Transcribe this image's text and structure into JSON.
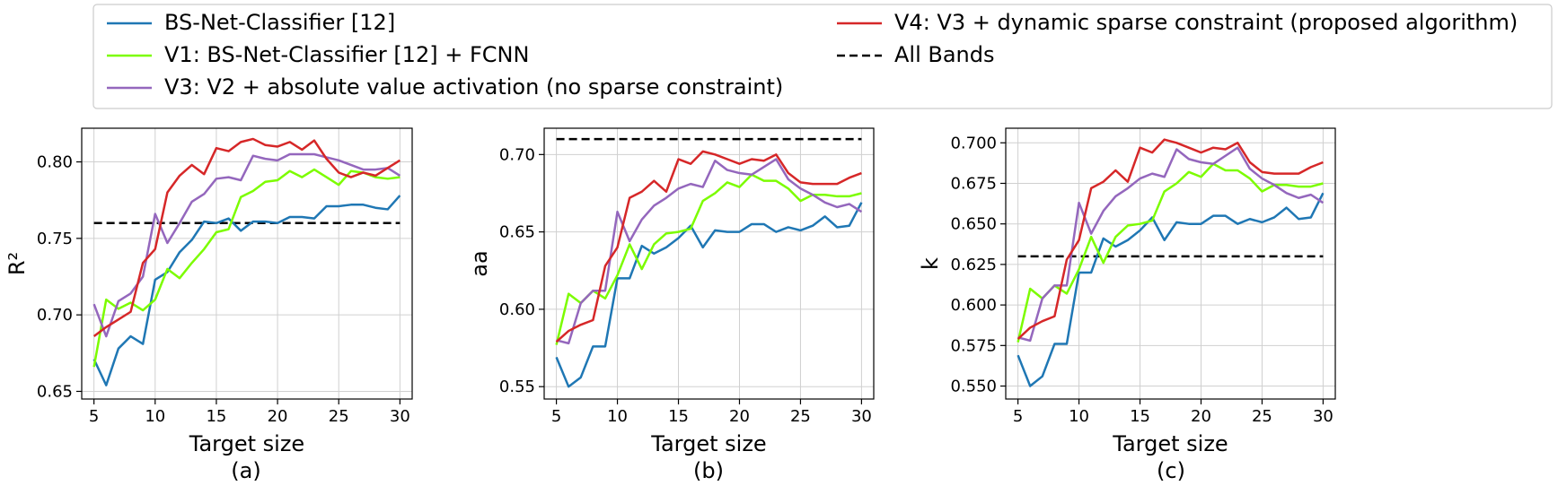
{
  "figure": {
    "sublabels": [
      "(a)",
      "(b)",
      "(c)"
    ]
  },
  "legend": {
    "entries": [
      {
        "label": "BS-Net-Classifier [12]",
        "color": "#1f77b4",
        "dashed": false
      },
      {
        "label": "V1: BS-Net-Classifier [12] + FCNN",
        "color": "#7cfc00",
        "dashed": false
      },
      {
        "label": "V3: V2 + absolute value activation (no sparse constraint)",
        "color": "#9467bd",
        "dashed": false
      },
      {
        "label": "V4: V3 + dynamic sparse constraint (proposed algorithm)",
        "color": "#d62728",
        "dashed": false
      },
      {
        "label": "All Bands",
        "color": "#000000",
        "dashed": true
      }
    ]
  },
  "chart_data": [
    {
      "type": "line",
      "title": "",
      "xlabel": "Target size",
      "ylabel": "R²",
      "xlim": [
        4,
        31
      ],
      "ylim": [
        0.645,
        0.822
      ],
      "xticks": [
        5,
        10,
        15,
        20,
        25,
        30
      ],
      "yticks": [
        0.65,
        0.7,
        0.75,
        0.8
      ],
      "ytick_labels": [
        "0.65",
        "0.70",
        "0.75",
        "0.80"
      ],
      "grid": true,
      "x": [
        5,
        6,
        7,
        8,
        9,
        10,
        11,
        12,
        13,
        14,
        15,
        16,
        17,
        18,
        19,
        20,
        21,
        22,
        23,
        24,
        25,
        26,
        27,
        28,
        29,
        30
      ],
      "series": [
        {
          "name": "BS-Net-Classifier [12]",
          "color": "#1f77b4",
          "values": [
            0.671,
            0.654,
            0.678,
            0.686,
            0.681,
            0.723,
            0.728,
            0.741,
            0.749,
            0.761,
            0.76,
            0.763,
            0.755,
            0.761,
            0.761,
            0.76,
            0.764,
            0.764,
            0.763,
            0.771,
            0.771,
            0.772,
            0.772,
            0.77,
            0.769,
            0.778
          ]
        },
        {
          "name": "V1: BS-Net-Classifier [12] + FCNN",
          "color": "#7cfc00",
          "values": [
            0.666,
            0.71,
            0.704,
            0.708,
            0.703,
            0.71,
            0.73,
            0.724,
            0.734,
            0.743,
            0.754,
            0.756,
            0.777,
            0.781,
            0.787,
            0.788,
            0.794,
            0.79,
            0.795,
            0.79,
            0.785,
            0.794,
            0.793,
            0.79,
            0.789,
            0.79
          ]
        },
        {
          "name": "V3: V2 + absolute value activation (no sparse constraint)",
          "color": "#9467bd",
          "values": [
            0.707,
            0.686,
            0.709,
            0.714,
            0.725,
            0.766,
            0.747,
            0.76,
            0.774,
            0.779,
            0.789,
            0.79,
            0.788,
            0.804,
            0.802,
            0.801,
            0.805,
            0.805,
            0.805,
            0.803,
            0.801,
            0.798,
            0.795,
            0.795,
            0.796,
            0.791
          ]
        },
        {
          "name": "V4: V3 + dynamic sparse constraint (proposed algorithm)",
          "color": "#d62728",
          "values": [
            0.686,
            0.692,
            0.697,
            0.702,
            0.734,
            0.743,
            0.78,
            0.791,
            0.798,
            0.792,
            0.809,
            0.807,
            0.813,
            0.815,
            0.811,
            0.81,
            0.813,
            0.808,
            0.814,
            0.802,
            0.793,
            0.79,
            0.793,
            0.791,
            0.796,
            0.801
          ]
        }
      ],
      "reference": {
        "name": "All Bands",
        "value": 0.76
      }
    },
    {
      "type": "line",
      "title": "",
      "xlabel": "Target size",
      "ylabel": "aa",
      "xlim": [
        4,
        31
      ],
      "ylim": [
        0.542,
        0.717
      ],
      "xticks": [
        5,
        10,
        15,
        20,
        25,
        30
      ],
      "yticks": [
        0.55,
        0.6,
        0.65,
        0.7
      ],
      "ytick_labels": [
        "0.55",
        "0.60",
        "0.65",
        "0.70"
      ],
      "grid": true,
      "x": [
        5,
        6,
        7,
        8,
        9,
        10,
        11,
        12,
        13,
        14,
        15,
        16,
        17,
        18,
        19,
        20,
        21,
        22,
        23,
        24,
        25,
        26,
        27,
        28,
        29,
        30
      ],
      "series": [
        {
          "name": "BS-Net-Classifier [12]",
          "color": "#1f77b4",
          "values": [
            0.569,
            0.55,
            0.556,
            0.576,
            0.576,
            0.62,
            0.62,
            0.641,
            0.636,
            0.64,
            0.646,
            0.654,
            0.64,
            0.651,
            0.65,
            0.65,
            0.655,
            0.655,
            0.65,
            0.653,
            0.651,
            0.654,
            0.66,
            0.653,
            0.654,
            0.669
          ]
        },
        {
          "name": "V1: BS-Net-Classifier [12] + FCNN",
          "color": "#7cfc00",
          "values": [
            0.577,
            0.61,
            0.604,
            0.612,
            0.607,
            0.622,
            0.642,
            0.626,
            0.642,
            0.649,
            0.65,
            0.652,
            0.67,
            0.675,
            0.682,
            0.679,
            0.687,
            0.683,
            0.683,
            0.678,
            0.67,
            0.674,
            0.674,
            0.673,
            0.673,
            0.675
          ]
        },
        {
          "name": "V3: V2 + absolute value activation (no sparse constraint)",
          "color": "#9467bd",
          "values": [
            0.58,
            0.578,
            0.604,
            0.612,
            0.612,
            0.663,
            0.644,
            0.658,
            0.667,
            0.672,
            0.678,
            0.681,
            0.679,
            0.696,
            0.69,
            0.688,
            0.687,
            0.692,
            0.697,
            0.684,
            0.678,
            0.674,
            0.669,
            0.666,
            0.668,
            0.663
          ]
        },
        {
          "name": "V4: V3 + dynamic sparse constraint (proposed algorithm)",
          "color": "#d62728",
          "values": [
            0.579,
            0.586,
            0.59,
            0.593,
            0.628,
            0.64,
            0.672,
            0.676,
            0.683,
            0.676,
            0.697,
            0.694,
            0.702,
            0.7,
            0.697,
            0.694,
            0.697,
            0.696,
            0.7,
            0.688,
            0.682,
            0.681,
            0.681,
            0.681,
            0.685,
            0.688
          ]
        }
      ],
      "reference": {
        "name": "All Bands",
        "value": 0.71
      }
    },
    {
      "type": "line",
      "title": "",
      "xlabel": "Target size",
      "ylabel": "k",
      "xlim": [
        4,
        31
      ],
      "ylim": [
        0.542,
        0.709
      ],
      "xticks": [
        5,
        10,
        15,
        20,
        25,
        30
      ],
      "yticks": [
        0.55,
        0.575,
        0.6,
        0.625,
        0.65,
        0.675,
        0.7
      ],
      "ytick_labels": [
        "0.550",
        "0.575",
        "0.600",
        "0.625",
        "0.650",
        "0.675",
        "0.700"
      ],
      "grid": true,
      "x": [
        5,
        6,
        7,
        8,
        9,
        10,
        11,
        12,
        13,
        14,
        15,
        16,
        17,
        18,
        19,
        20,
        21,
        22,
        23,
        24,
        25,
        26,
        27,
        28,
        29,
        30
      ],
      "series": [
        {
          "name": "BS-Net-Classifier [12]",
          "color": "#1f77b4",
          "values": [
            0.569,
            0.55,
            0.556,
            0.576,
            0.576,
            0.62,
            0.62,
            0.641,
            0.636,
            0.64,
            0.646,
            0.654,
            0.64,
            0.651,
            0.65,
            0.65,
            0.655,
            0.655,
            0.65,
            0.653,
            0.651,
            0.654,
            0.66,
            0.653,
            0.654,
            0.669
          ]
        },
        {
          "name": "V1: BS-Net-Classifier [12] + FCNN",
          "color": "#7cfc00",
          "values": [
            0.577,
            0.61,
            0.604,
            0.612,
            0.607,
            0.622,
            0.642,
            0.626,
            0.642,
            0.649,
            0.65,
            0.652,
            0.67,
            0.675,
            0.682,
            0.679,
            0.687,
            0.683,
            0.683,
            0.678,
            0.67,
            0.674,
            0.674,
            0.673,
            0.673,
            0.675
          ]
        },
        {
          "name": "V3: V2 + absolute value activation (no sparse constraint)",
          "color": "#9467bd",
          "values": [
            0.58,
            0.578,
            0.604,
            0.612,
            0.612,
            0.663,
            0.644,
            0.658,
            0.667,
            0.672,
            0.678,
            0.681,
            0.679,
            0.696,
            0.69,
            0.688,
            0.687,
            0.692,
            0.697,
            0.684,
            0.678,
            0.674,
            0.669,
            0.666,
            0.668,
            0.663
          ]
        },
        {
          "name": "V4: V3 + dynamic sparse constraint (proposed algorithm)",
          "color": "#d62728",
          "values": [
            0.579,
            0.586,
            0.59,
            0.593,
            0.628,
            0.64,
            0.672,
            0.676,
            0.683,
            0.676,
            0.697,
            0.694,
            0.702,
            0.7,
            0.697,
            0.694,
            0.697,
            0.696,
            0.7,
            0.688,
            0.682,
            0.681,
            0.681,
            0.681,
            0.685,
            0.688
          ]
        }
      ],
      "reference": {
        "name": "All Bands",
        "value": 0.63
      }
    }
  ]
}
